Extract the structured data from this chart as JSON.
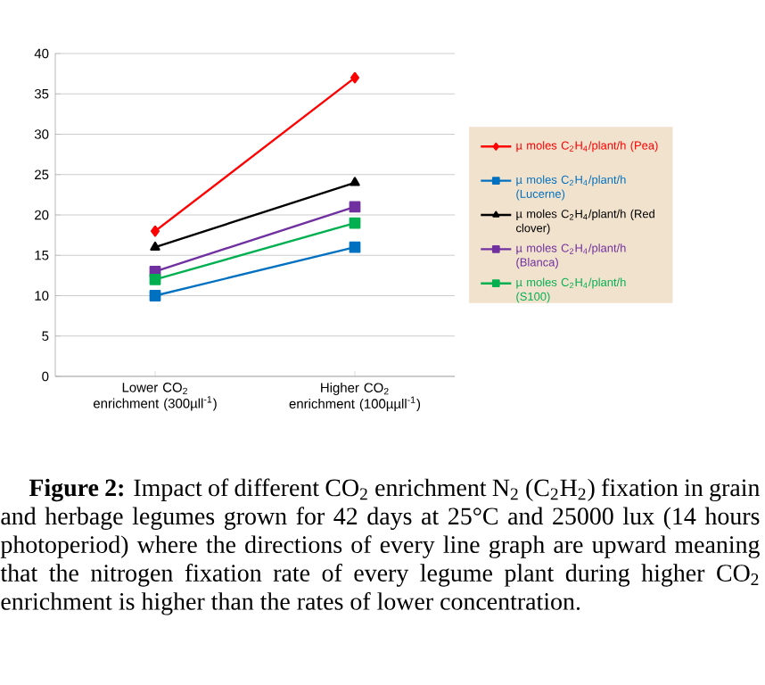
{
  "chart_data": {
    "type": "line",
    "categories": [
      "Lower CO$_{2}$ enrichment (300µll$^{-1}$)",
      "Higher CO$_{2}$ enrichment (100µµll$^{-1}$)"
    ],
    "series": [
      {
        "name": "µ moles C$_{2}$H$_{4}$/plant/h (Pea)",
        "color": "#ff0000",
        "marker": "diamond",
        "values": [
          18,
          37
        ]
      },
      {
        "name": "µ moles C$_{2}$H$_{4}$/plant/h (Lucerne)",
        "color": "#0070c0",
        "marker": "square",
        "values": [
          10,
          16
        ]
      },
      {
        "name": "µ moles C$_{2}$H$_{4}$/plant/h (Red clover)",
        "color": "#000000",
        "marker": "triangle",
        "values": [
          16,
          24
        ]
      },
      {
        "name": "µ moles C$_{2}$H$_{4}$/plant/h (Blanca)",
        "color": "#7030a0",
        "marker": "square",
        "values": [
          13,
          21
        ]
      },
      {
        "name": "µ moles C$_{2}$H$_{4}$/plant/h (S100)",
        "color": "#00b050",
        "marker": "square",
        "values": [
          12,
          19
        ]
      }
    ],
    "ylim": [
      0,
      40
    ],
    "yticks": [
      0,
      5,
      10,
      15,
      20,
      25,
      30,
      35,
      40
    ],
    "grid": "y",
    "legend": "right",
    "line_style": "solid",
    "annotations": [
      "**Figure 2:** Impact of different CO$_{2}$ enrichment N$_{2}$ (C$_{2}$H$_{2}$) fixation in grain and herbage legumes grown for 42 days at 25°C and 25000 lux (14 hours photoperiod) where the directions of every line graph are upward meaning that the nitrogen fixation rate of every legume plant during higher CO$_{2}$ enrichment is higher than the rates of lower concentration."
    ]
  }
}
